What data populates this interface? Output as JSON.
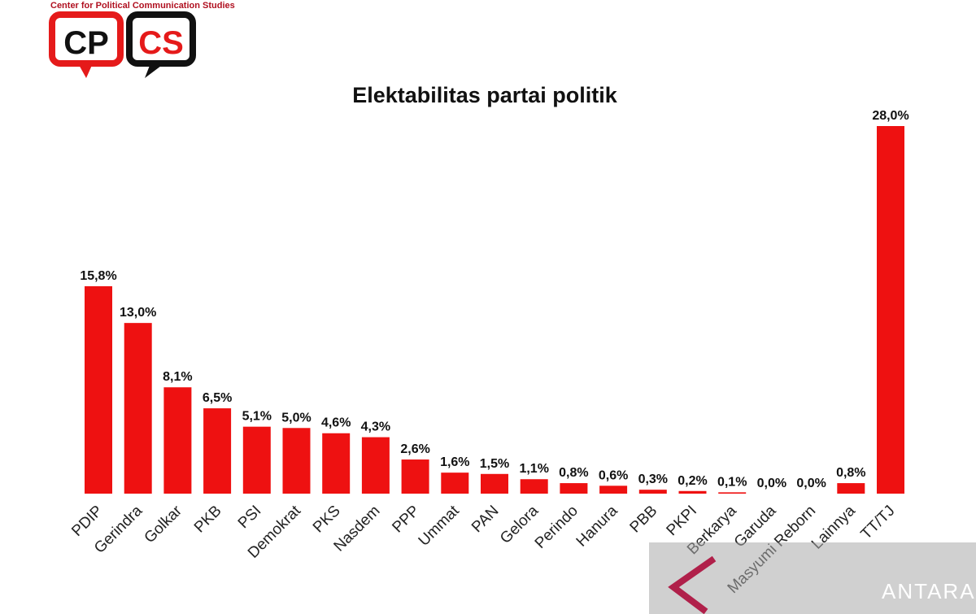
{
  "logo": {
    "text_left": "CP",
    "text_right": "CS",
    "tagline": "Center for Political Communication Studies"
  },
  "watermark": {
    "text": "ANTARA"
  },
  "chart_data": {
    "type": "bar",
    "title": "Elektabilitas partai politik",
    "categories": [
      "PDIP",
      "Gerindra",
      "Golkar",
      "PKB",
      "PSI",
      "Demokrat",
      "PKS",
      "Nasdem",
      "PPP",
      "Ummat",
      "PAN",
      "Gelora",
      "Perindo",
      "Hanura",
      "PBB",
      "PKPI",
      "Berkarya",
      "Garuda",
      "Masyumi Reborn",
      "Lainnya",
      "TT/TJ"
    ],
    "values": [
      15.8,
      13.0,
      8.1,
      6.5,
      5.1,
      5.0,
      4.6,
      4.3,
      2.6,
      1.6,
      1.5,
      1.1,
      0.8,
      0.6,
      0.3,
      0.2,
      0.1,
      0.0,
      0.0,
      0.8,
      28.0
    ],
    "labels": [
      "15,8%",
      "13,0%",
      "8,1%",
      "6,5%",
      "5,1%",
      "5,0%",
      "4,6%",
      "4,3%",
      "2,6%",
      "1,6%",
      "1,5%",
      "1,1%",
      "0,8%",
      "0,6%",
      "0,3%",
      "0,2%",
      "0,1%",
      "0,0%",
      "0,0%",
      "0,8%",
      "28,0%"
    ],
    "xlabel": "",
    "ylabel": "",
    "ylim": [
      0,
      28
    ],
    "grid": false,
    "bar_color": "#ee1111"
  }
}
